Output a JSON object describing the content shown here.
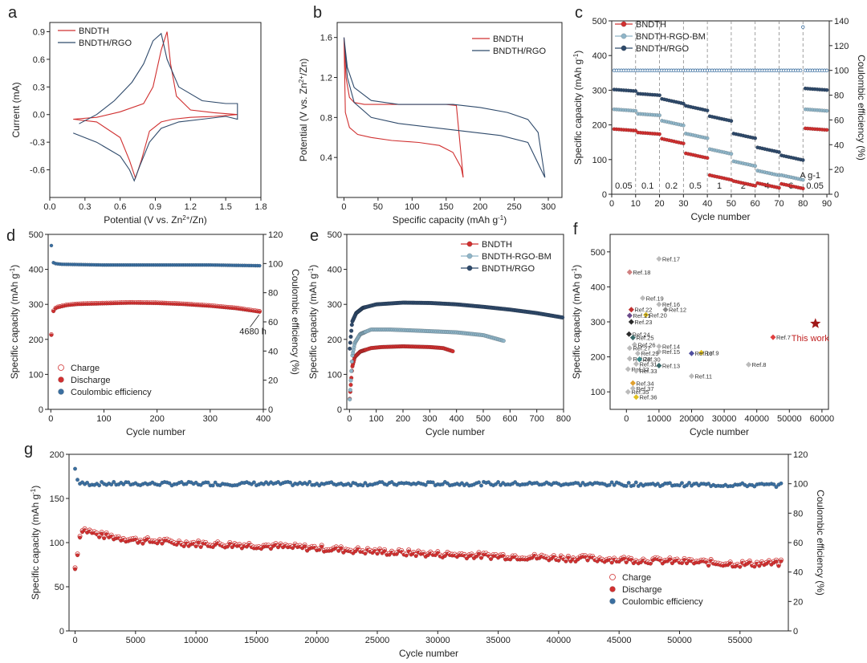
{
  "chart_data": [
    {
      "panel": "a",
      "type": "line",
      "xlabel": "Potential (V vs. Zn2+/Zn)",
      "ylabel": "Current (mA)",
      "xlim": [
        0.0,
        1.8
      ],
      "ylim": [
        -0.9,
        1.0
      ],
      "xticks": [
        "0.0",
        "0.3",
        "0.6",
        "0.9",
        "1.2",
        "1.5",
        "1.8"
      ],
      "yticks": [
        "-0.6",
        "-0.3",
        "0.0",
        "0.3",
        "0.6",
        "0.9"
      ],
      "legend": "top-left",
      "series": [
        {
          "name": "BNDTH",
          "color": "#d03030",
          "x": [
            0.2,
            0.4,
            0.6,
            0.68,
            0.73,
            0.78,
            0.85,
            0.95,
            1.05,
            1.2,
            1.4,
            1.6,
            1.6,
            1.4,
            1.2,
            1.08,
            1.03,
            1.0,
            0.95,
            0.88,
            0.8,
            0.6,
            0.4,
            0.2
          ],
          "y": [
            -0.05,
            -0.08,
            -0.25,
            -0.5,
            -0.69,
            -0.5,
            -0.18,
            -0.08,
            -0.05,
            -0.03,
            -0.02,
            0.0,
            0.0,
            0.02,
            0.05,
            0.2,
            0.55,
            0.9,
            0.7,
            0.3,
            0.12,
            0.03,
            -0.03,
            -0.05
          ]
        },
        {
          "name": "BNDTH/RGO",
          "color": "#2f4a6b",
          "x": [
            0.2,
            0.4,
            0.6,
            0.68,
            0.72,
            0.77,
            0.85,
            0.95,
            1.1,
            1.3,
            1.5,
            1.6,
            1.6,
            1.5,
            1.3,
            1.1,
            1.0,
            0.95,
            0.88,
            0.8,
            0.7,
            0.55,
            0.4,
            0.25
          ],
          "y": [
            -0.2,
            -0.3,
            -0.45,
            -0.6,
            -0.72,
            -0.55,
            -0.3,
            -0.15,
            -0.08,
            -0.05,
            -0.02,
            -0.05,
            0.12,
            0.12,
            0.15,
            0.3,
            0.6,
            0.88,
            0.8,
            0.55,
            0.35,
            0.15,
            0.0,
            -0.1
          ]
        }
      ]
    },
    {
      "panel": "b",
      "type": "line",
      "xlabel": "Specific capacity (mAh g-1)",
      "ylabel": "Potential (V vs. Zn2+/Zn)",
      "xlim": [
        -10,
        320
      ],
      "ylim": [
        0.0,
        1.75
      ],
      "xticks": [
        "0",
        "50",
        "100",
        "150",
        "200",
        "250",
        "300"
      ],
      "yticks": [
        "0.4",
        "0.8",
        "1.2",
        "1.6"
      ],
      "legend": "top-right",
      "series": [
        {
          "name": "BNDTH",
          "color": "#d03030",
          "x": [
            0,
            3,
            8,
            15,
            30,
            60,
            100,
            150,
            165,
            175,
            175,
            172,
            160,
            140,
            110,
            70,
            40,
            20,
            8,
            2,
            0
          ],
          "y": [
            1.6,
            1.2,
            1.0,
            0.95,
            0.93,
            0.93,
            0.93,
            0.93,
            0.92,
            0.2,
            0.2,
            0.3,
            0.45,
            0.52,
            0.55,
            0.57,
            0.6,
            0.63,
            0.7,
            0.85,
            1.6
          ]
        },
        {
          "name": "BNDTH/RGO",
          "color": "#2f4a6b",
          "x": [
            0,
            5,
            15,
            40,
            80,
            120,
            160,
            200,
            240,
            270,
            285,
            295,
            295,
            270,
            230,
            180,
            130,
            80,
            40,
            15,
            5,
            0
          ],
          "y": [
            1.6,
            1.3,
            1.1,
            0.97,
            0.93,
            0.93,
            0.93,
            0.9,
            0.85,
            0.78,
            0.65,
            0.2,
            0.2,
            0.55,
            0.62,
            0.66,
            0.7,
            0.74,
            0.8,
            0.95,
            1.2,
            1.6
          ]
        }
      ]
    },
    {
      "panel": "c",
      "type": "scatter",
      "xlabel": "Cycle number",
      "ylabel": "Specific capacity (mAh g-1)",
      "ylabel_right": "Coulombic efficiency (%)",
      "xlim": [
        0,
        91
      ],
      "ylim": [
        0,
        500
      ],
      "ylim_right": [
        0,
        140
      ],
      "xticks": [
        "0",
        "10",
        "20",
        "30",
        "40",
        "50",
        "60",
        "70",
        "80",
        "90"
      ],
      "yticks": [
        "0",
        "100",
        "200",
        "300",
        "400",
        "500"
      ],
      "yticks_right": [
        "0",
        "20",
        "40",
        "60",
        "80",
        "100",
        "120",
        "140"
      ],
      "rate_labels": [
        "0.05",
        "0.1",
        "0.2",
        "0.5",
        "1",
        "2",
        "4",
        "6",
        "0.05"
      ],
      "rate_unit": "A g-1",
      "legend": "top-left",
      "series": [
        {
          "name": "BNDTH",
          "color": "#d03030",
          "segments": [
            188,
            178,
            160,
            118,
            55,
            38,
            32,
            30,
            190
          ]
        },
        {
          "name": "BNDTH-RGO-BM",
          "color": "#8fb5c8",
          "segments": [
            245,
            232,
            212,
            175,
            130,
            95,
            68,
            55,
            245
          ]
        },
        {
          "name": "BNDTH/RGO",
          "color": "#2f4a6b",
          "segments": [
            302,
            290,
            275,
            255,
            225,
            175,
            135,
            112,
            305
          ]
        },
        {
          "name": "Coulombic efficiency",
          "color": "#3b6fa0",
          "ce": 100
        }
      ]
    },
    {
      "panel": "d",
      "type": "scatter",
      "xlabel": "Cycle number",
      "ylabel": "Specific capacity (mAh g-1)",
      "ylabel_right": "Coulombic efficiency (%)",
      "xlim": [
        -5,
        400
      ],
      "ylim": [
        0,
        500
      ],
      "ylim_right": [
        0,
        120
      ],
      "xticks": [
        "0",
        "100",
        "200",
        "300",
        "400"
      ],
      "yticks": [
        "0",
        "100",
        "200",
        "300",
        "400",
        "500"
      ],
      "yticks_right": [
        "0",
        "20",
        "40",
        "60",
        "80",
        "100",
        "120"
      ],
      "annotation": "4680 h",
      "legend": "bottom-left",
      "series": [
        {
          "name": "Charge",
          "color": "#d03030",
          "style": "open"
        },
        {
          "name": "Discharge",
          "color": "#d03030",
          "style": "filled",
          "x": [
            0,
            5,
            10,
            30,
            50,
            100,
            150,
            200,
            250,
            300,
            350,
            395
          ],
          "y": [
            195,
            280,
            290,
            297,
            300,
            302,
            304,
            303,
            300,
            295,
            288,
            278
          ]
        },
        {
          "name": "Coulombic efficiency",
          "color": "#3b6fa0",
          "style": "filled",
          "x": [
            0,
            3,
            8,
            20,
            100,
            200,
            300,
            395
          ],
          "y": [
            118,
            101,
            100,
            99.5,
            99,
            99,
            99,
            98.5
          ]
        }
      ]
    },
    {
      "panel": "e",
      "type": "scatter",
      "xlabel": "Cycle number",
      "ylabel": "Specific capacity (mAh g-1)",
      "xlim": [
        -10,
        800
      ],
      "ylim": [
        0,
        500
      ],
      "xticks": [
        "0",
        "100",
        "200",
        "300",
        "400",
        "500",
        "600",
        "700",
        "800"
      ],
      "yticks": [
        "0",
        "100",
        "200",
        "300",
        "400",
        "500"
      ],
      "legend": "top-right",
      "series": [
        {
          "name": "BNDTH",
          "color": "#d03030",
          "x": [
            0,
            10,
            20,
            40,
            80,
            120,
            200,
            300,
            350,
            390
          ],
          "y": [
            20,
            120,
            150,
            165,
            175,
            178,
            180,
            178,
            175,
            165
          ]
        },
        {
          "name": "BNDTH-RGO-BM",
          "color": "#8fb5c8",
          "x": [
            0,
            10,
            20,
            40,
            80,
            150,
            250,
            400,
            500,
            580
          ],
          "y": [
            15,
            150,
            190,
            215,
            228,
            228,
            225,
            220,
            212,
            195
          ]
        },
        {
          "name": "BNDTH/RGO",
          "color": "#2f4a6b",
          "x": [
            0,
            10,
            25,
            50,
            100,
            200,
            300,
            400,
            500,
            600,
            700,
            800
          ],
          "y": [
            165,
            250,
            275,
            290,
            300,
            305,
            304,
            300,
            293,
            285,
            275,
            262
          ]
        }
      ]
    },
    {
      "panel": "f",
      "type": "scatter",
      "xlabel": "Cycle number",
      "ylabel": "Specific capacity (mAh g-1)",
      "xlim": [
        -5000,
        62000
      ],
      "ylim": [
        50,
        550
      ],
      "xticks": [
        "0",
        "10000",
        "20000",
        "30000",
        "40000",
        "50000",
        "60000"
      ],
      "yticks": [
        "100",
        "200",
        "300",
        "400",
        "500"
      ],
      "this_work_label": "This work",
      "this_work": {
        "x": 58000,
        "y": 295
      },
      "points": [
        {
          "label": "Ref.7",
          "x": 45000,
          "y": 256,
          "color": "#e04040"
        },
        {
          "label": "Ref.8",
          "x": 37500,
          "y": 178,
          "color": "#bbbbbb"
        },
        {
          "label": "Ref.9",
          "x": 23000,
          "y": 212,
          "color": "#e0c020"
        },
        {
          "label": "Ref.10",
          "x": 20000,
          "y": 210,
          "color": "#5050a0"
        },
        {
          "label": "Ref.11",
          "x": 20000,
          "y": 145,
          "color": "#bbbbbb"
        },
        {
          "label": "Ref.12",
          "x": 12000,
          "y": 335,
          "color": "#888888"
        },
        {
          "label": "Ref.13",
          "x": 10000,
          "y": 175,
          "color": "#3a6a6a"
        },
        {
          "label": "Ref.14",
          "x": 10000,
          "y": 230,
          "color": "#bbbbbb"
        },
        {
          "label": "Ref.15",
          "x": 10000,
          "y": 215,
          "color": "#bbbbbb"
        },
        {
          "label": "Ref.16",
          "x": 10000,
          "y": 350,
          "color": "#bbbbbb"
        },
        {
          "label": "Ref.17",
          "x": 10000,
          "y": 480,
          "color": "#bbbbbb"
        },
        {
          "label": "Ref.18",
          "x": 1000,
          "y": 442,
          "color": "#d08080"
        },
        {
          "label": "Ref.19",
          "x": 5000,
          "y": 368,
          "color": "#bbbbbb"
        },
        {
          "label": "Ref.20",
          "x": 6000,
          "y": 320,
          "color": "#e0c020"
        },
        {
          "label": "Ref.21",
          "x": 1000,
          "y": 318,
          "color": "#6a4a8a"
        },
        {
          "label": "Ref.22",
          "x": 1500,
          "y": 335,
          "color": "#c03030"
        },
        {
          "label": "Ref.23",
          "x": 1500,
          "y": 300,
          "color": "#2a2a2a"
        },
        {
          "label": "Ref.24",
          "x": 800,
          "y": 265,
          "color": "#2a2a2a"
        },
        {
          "label": "Ref.25",
          "x": 2000,
          "y": 255,
          "color": "#3a6a6a"
        },
        {
          "label": "Ref.26",
          "x": 2500,
          "y": 235,
          "color": "#bbbbbb"
        },
        {
          "label": "Ref.27",
          "x": 1000,
          "y": 225,
          "color": "#bbbbbb"
        },
        {
          "label": "Ref.28",
          "x": 1000,
          "y": 195,
          "color": "#bbbbbb"
        },
        {
          "label": "Ref.29",
          "x": 3500,
          "y": 210,
          "color": "#bbbbbb"
        },
        {
          "label": "Ref.30",
          "x": 4000,
          "y": 193,
          "color": "#3a8a8a"
        },
        {
          "label": "Ref.31",
          "x": 3000,
          "y": 180,
          "color": "#bbbbbb"
        },
        {
          "label": "Ref.32",
          "x": 500,
          "y": 165,
          "color": "#bbbbbb"
        },
        {
          "label": "Ref.33",
          "x": 3000,
          "y": 160,
          "color": "#bbbbbb"
        },
        {
          "label": "Ref.34",
          "x": 2000,
          "y": 125,
          "color": "#e0a030"
        },
        {
          "label": "Ref.35",
          "x": 500,
          "y": 100,
          "color": "#bbbbbb"
        },
        {
          "label": "Ref.36",
          "x": 3000,
          "y": 85,
          "color": "#e0c020"
        },
        {
          "label": "Ref.37",
          "x": 2000,
          "y": 110,
          "color": "#bbbbbb"
        }
      ]
    },
    {
      "panel": "g",
      "type": "scatter",
      "xlabel": "Cycle number",
      "ylabel": "Specific capacity (mAh g-1)",
      "ylabel_right": "Coulombic efficiency (%)",
      "xlim": [
        -500,
        59000
      ],
      "ylim": [
        0,
        200
      ],
      "ylim_right": [
        0,
        120
      ],
      "xticks": [
        "0",
        "5000",
        "10000",
        "15000",
        "20000",
        "25000",
        "30000",
        "35000",
        "40000",
        "45000",
        "50000",
        "55000"
      ],
      "yticks": [
        "0",
        "50",
        "100",
        "150",
        "200"
      ],
      "yticks_right": [
        "0",
        "20",
        "40",
        "60",
        "80",
        "100",
        "120"
      ],
      "legend": "bottom-right",
      "series": [
        {
          "name": "Charge",
          "color": "#d03030",
          "style": "open"
        },
        {
          "name": "Discharge",
          "color": "#d03030",
          "style": "filled",
          "x": [
            0,
            500,
            2000,
            5000,
            10000,
            15000,
            20000,
            25000,
            30000,
            35000,
            40000,
            45000,
            50000,
            55000,
            58500
          ],
          "y": [
            70,
            115,
            108,
            102,
            98,
            96,
            93,
            89,
            86,
            84,
            82,
            80,
            78,
            75,
            76
          ]
        },
        {
          "name": "Coulombic efficiency",
          "color": "#3b6fa0",
          "style": "filled",
          "x": [
            0,
            300,
            5000,
            20000,
            40000,
            58500
          ],
          "y": [
            110,
            100,
            100,
            100,
            100,
            99
          ]
        }
      ]
    }
  ]
}
